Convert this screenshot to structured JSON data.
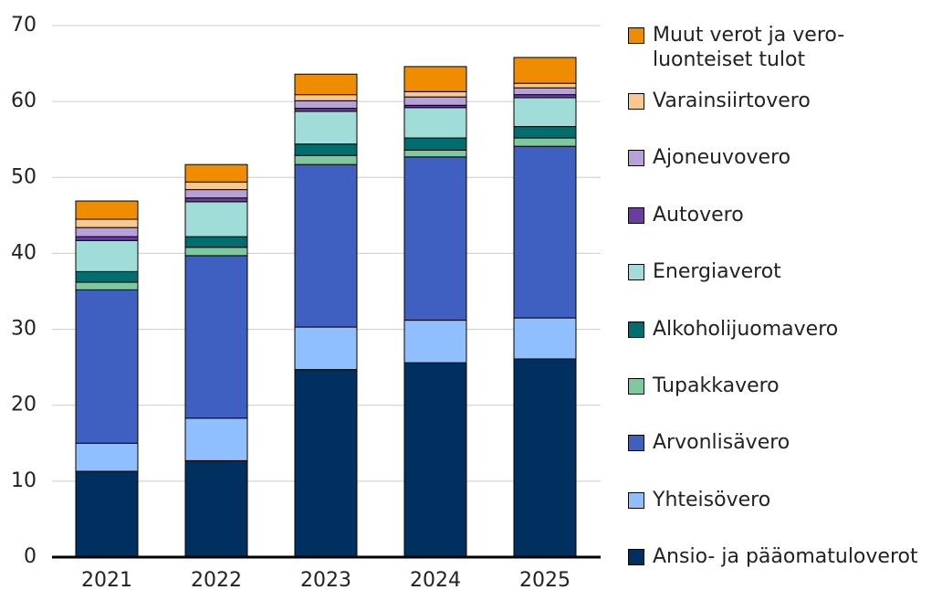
{
  "chart_data": {
    "type": "bar",
    "stacked": true,
    "categories": [
      "2021",
      "2022",
      "2023",
      "2024",
      "2025"
    ],
    "series": [
      {
        "name": "Ansio- ja pääomatuloverot",
        "color": "#00305f",
        "values": [
          11.3,
          12.7,
          24.7,
          25.6,
          26.1
        ]
      },
      {
        "name": "Yhteisövero",
        "color": "#8fbfff",
        "values": [
          3.7,
          5.6,
          5.6,
          5.6,
          5.4
        ]
      },
      {
        "name": "Arvonlisävero",
        "color": "#3f60c0",
        "values": [
          20.2,
          21.4,
          21.4,
          21.5,
          22.6
        ]
      },
      {
        "name": "Tupakkavero",
        "color": "#80c8a0",
        "values": [
          1.0,
          1.1,
          1.2,
          0.9,
          1.1
        ]
      },
      {
        "name": "Alkoholijuomavero",
        "color": "#006e6e",
        "values": [
          1.4,
          1.4,
          1.5,
          1.6,
          1.5
        ]
      },
      {
        "name": "Energiaverot",
        "color": "#a0dcd8",
        "values": [
          4.1,
          4.6,
          4.3,
          4.0,
          3.8
        ]
      },
      {
        "name": "Autovero",
        "color": "#6a3ea0",
        "values": [
          0.5,
          0.5,
          0.4,
          0.3,
          0.4
        ]
      },
      {
        "name": "Ajoneuvovero",
        "color": "#b8a0d8",
        "values": [
          1.2,
          1.1,
          1.0,
          1.1,
          0.9
        ]
      },
      {
        "name": "Varainsiirtovero",
        "color": "#f8c890",
        "values": [
          1.1,
          1.0,
          0.8,
          0.7,
          0.6
        ]
      },
      {
        "name": "Muut verot ja vero-luonteiset tulot",
        "color": "#f08c00",
        "values": [
          2.4,
          2.3,
          2.7,
          3.3,
          3.4
        ]
      }
    ],
    "ylim": [
      0,
      70
    ],
    "yticks": [
      0,
      10,
      20,
      30,
      40,
      50,
      60,
      70
    ],
    "grid": true,
    "legend": "right"
  }
}
